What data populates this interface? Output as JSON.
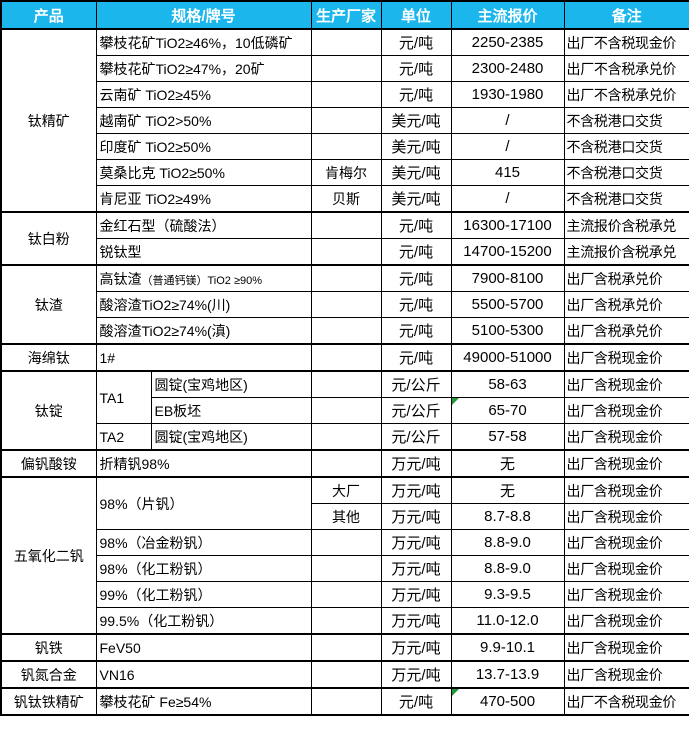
{
  "colors": {
    "header_bg": "#1bb6ec",
    "header_text": "#ffffff",
    "grid_border": "#000000",
    "error_indicator_green": "#1f9939"
  },
  "table": {
    "header": [
      "产品",
      "规格/牌号",
      "生产厂家",
      "单位",
      "主流报价",
      "备注"
    ],
    "rows": [
      {
        "section": true,
        "cells": [
          {
            "name": "product",
            "rowspan": 7,
            "text": "钛精矿"
          },
          {
            "name": "spec",
            "colspan": 2,
            "text": "攀枝花矿TiO2≥46%，10低磷矿"
          },
          {
            "name": "maker",
            "text": ""
          },
          {
            "name": "unit",
            "text": "元/吨"
          },
          {
            "name": "price",
            "text": "2250-2385"
          },
          {
            "name": "note",
            "text": "出厂不含税现金价"
          }
        ]
      },
      {
        "cells": [
          {
            "name": "spec",
            "colspan": 2,
            "text": "攀枝花矿TiO2≥47%，20矿"
          },
          {
            "name": "maker",
            "text": ""
          },
          {
            "name": "unit",
            "text": "元/吨"
          },
          {
            "name": "price",
            "text": "2300-2480"
          },
          {
            "name": "note",
            "text": "出厂不含税承兑价"
          }
        ]
      },
      {
        "cells": [
          {
            "name": "spec",
            "colspan": 2,
            "text": "云南矿 TiO2≥45%"
          },
          {
            "name": "maker",
            "text": ""
          },
          {
            "name": "unit",
            "text": "元/吨"
          },
          {
            "name": "price",
            "text": "1930-1980"
          },
          {
            "name": "note",
            "text": "出厂不含税承兑价"
          }
        ]
      },
      {
        "cells": [
          {
            "name": "spec",
            "colspan": 2,
            "text": "越南矿 TiO2>50%"
          },
          {
            "name": "maker",
            "text": ""
          },
          {
            "name": "unit",
            "text": "美元/吨"
          },
          {
            "name": "price",
            "text": "/"
          },
          {
            "name": "note",
            "text": "不含税港口交货"
          }
        ]
      },
      {
        "cells": [
          {
            "name": "spec",
            "colspan": 2,
            "text": "印度矿 TiO2≥50%"
          },
          {
            "name": "maker",
            "text": ""
          },
          {
            "name": "unit",
            "text": "美元/吨"
          },
          {
            "name": "price",
            "text": "/"
          },
          {
            "name": "note",
            "text": "不含税港口交货"
          }
        ]
      },
      {
        "cells": [
          {
            "name": "spec",
            "colspan": 2,
            "text": "莫桑比克 TiO2≥50%"
          },
          {
            "name": "maker",
            "text": "肯梅尔"
          },
          {
            "name": "unit",
            "text": "美元/吨"
          },
          {
            "name": "price",
            "text": "415"
          },
          {
            "name": "note",
            "text": "不含税港口交货"
          }
        ]
      },
      {
        "cells": [
          {
            "name": "spec",
            "colspan": 2,
            "text": "肯尼亚 TiO2≥49%"
          },
          {
            "name": "maker",
            "text": "贝斯"
          },
          {
            "name": "unit",
            "text": "美元/吨"
          },
          {
            "name": "price",
            "text": "/"
          },
          {
            "name": "note",
            "text": "不含税港口交货"
          }
        ]
      },
      {
        "section": true,
        "cells": [
          {
            "name": "product",
            "rowspan": 2,
            "text": "钛白粉"
          },
          {
            "name": "spec",
            "colspan": 2,
            "text": "金红石型（硫酸法）"
          },
          {
            "name": "maker",
            "text": ""
          },
          {
            "name": "unit",
            "text": "元/吨"
          },
          {
            "name": "price",
            "text": "16300-17100"
          },
          {
            "name": "note",
            "text": "主流报价含税承兑"
          }
        ]
      },
      {
        "cells": [
          {
            "name": "spec",
            "colspan": 2,
            "text": "锐钛型"
          },
          {
            "name": "maker",
            "text": ""
          },
          {
            "name": "unit",
            "text": "元/吨"
          },
          {
            "name": "price",
            "text": "14700-15200"
          },
          {
            "name": "note",
            "text": "主流报价含税承兑"
          }
        ]
      },
      {
        "section": true,
        "cells": [
          {
            "name": "product",
            "rowspan": 3,
            "text": "钛渣"
          },
          {
            "name": "spec",
            "colspan": 2,
            "text": "高钛渣",
            "small": "（普通钙镁）TiO2 ≥90%"
          },
          {
            "name": "maker",
            "text": ""
          },
          {
            "name": "unit",
            "text": "元/吨"
          },
          {
            "name": "price",
            "text": "7900-8100"
          },
          {
            "name": "note",
            "text": "出厂含税承兑价"
          }
        ]
      },
      {
        "cells": [
          {
            "name": "spec",
            "colspan": 2,
            "text": "酸溶渣TiO2≥74%(川)"
          },
          {
            "name": "maker",
            "text": ""
          },
          {
            "name": "unit",
            "text": "元/吨"
          },
          {
            "name": "price",
            "text": "5500-5700"
          },
          {
            "name": "note",
            "text": "出厂含税承兑价"
          }
        ]
      },
      {
        "cells": [
          {
            "name": "spec",
            "colspan": 2,
            "text": "酸溶渣TiO2≥74%(滇)"
          },
          {
            "name": "maker",
            "text": ""
          },
          {
            "name": "unit",
            "text": "元/吨"
          },
          {
            "name": "price",
            "text": "5100-5300"
          },
          {
            "name": "note",
            "text": "出厂含税承兑价"
          }
        ]
      },
      {
        "section": true,
        "cells": [
          {
            "name": "product",
            "text": "海绵钛"
          },
          {
            "name": "spec",
            "colspan": 2,
            "text": "1#"
          },
          {
            "name": "maker",
            "text": ""
          },
          {
            "name": "unit",
            "text": "元/吨"
          },
          {
            "name": "price",
            "text": "49000-51000"
          },
          {
            "name": "note",
            "text": "出厂含税现金价"
          }
        ]
      },
      {
        "section": true,
        "cells": [
          {
            "name": "product",
            "rowspan": 3,
            "text": "钛锭"
          },
          {
            "name": "spec-a",
            "rowspan": 2,
            "text": "TA1"
          },
          {
            "name": "spec-b",
            "text": "圆锭(宝鸡地区)"
          },
          {
            "name": "maker",
            "text": ""
          },
          {
            "name": "unit",
            "text": "元/公斤"
          },
          {
            "name": "price",
            "text": "58-63"
          },
          {
            "name": "note",
            "text": "出厂含税现金价"
          }
        ]
      },
      {
        "cells": [
          {
            "name": "spec-b",
            "text": "EB板坯"
          },
          {
            "name": "maker",
            "text": ""
          },
          {
            "name": "unit",
            "text": "元/公斤"
          },
          {
            "name": "price",
            "text": "65-70",
            "green": true
          },
          {
            "name": "note",
            "text": "出厂含税现金价"
          }
        ]
      },
      {
        "cells": [
          {
            "name": "spec-a",
            "text": "TA2"
          },
          {
            "name": "spec-b",
            "text": "圆锭(宝鸡地区)"
          },
          {
            "name": "maker",
            "text": ""
          },
          {
            "name": "unit",
            "text": "元/公斤"
          },
          {
            "name": "price",
            "text": "57-58"
          },
          {
            "name": "note",
            "text": "出厂含税现金价"
          }
        ]
      },
      {
        "section": true,
        "cells": [
          {
            "name": "product",
            "text": "偏钒酸铵"
          },
          {
            "name": "spec",
            "colspan": 2,
            "text": "折精钒98%"
          },
          {
            "name": "maker",
            "text": ""
          },
          {
            "name": "unit",
            "text": "万元/吨"
          },
          {
            "name": "price",
            "text": "无"
          },
          {
            "name": "note",
            "text": "出厂含税现金价"
          }
        ]
      },
      {
        "section": true,
        "cells": [
          {
            "name": "product",
            "rowspan": 6,
            "text": "五氧化二钒"
          },
          {
            "name": "spec",
            "rowspan": 2,
            "colspan": 2,
            "text": "98%（片钒）"
          },
          {
            "name": "maker",
            "text": "大厂"
          },
          {
            "name": "unit",
            "text": "万元/吨"
          },
          {
            "name": "price",
            "text": "无"
          },
          {
            "name": "note",
            "text": "出厂含税现金价"
          }
        ]
      },
      {
        "cells": [
          {
            "name": "maker",
            "text": "其他"
          },
          {
            "name": "unit",
            "text": "万元/吨"
          },
          {
            "name": "price",
            "text": "8.7-8.8"
          },
          {
            "name": "note",
            "text": "出厂含税现金价"
          }
        ]
      },
      {
        "cells": [
          {
            "name": "spec",
            "colspan": 2,
            "text": "98%（冶金粉钒）"
          },
          {
            "name": "maker",
            "text": ""
          },
          {
            "name": "unit",
            "text": "万元/吨"
          },
          {
            "name": "price",
            "text": "8.8-9.0"
          },
          {
            "name": "note",
            "text": "出厂含税现金价"
          }
        ]
      },
      {
        "cells": [
          {
            "name": "spec",
            "colspan": 2,
            "text": "98%（化工粉钒）"
          },
          {
            "name": "maker",
            "text": ""
          },
          {
            "name": "unit",
            "text": "万元/吨"
          },
          {
            "name": "price",
            "text": "8.8-9.0"
          },
          {
            "name": "note",
            "text": "出厂含税现金价"
          }
        ]
      },
      {
        "cells": [
          {
            "name": "spec",
            "colspan": 2,
            "text": "99%（化工粉钒）"
          },
          {
            "name": "maker",
            "text": ""
          },
          {
            "name": "unit",
            "text": "万元/吨"
          },
          {
            "name": "price",
            "text": "9.3-9.5"
          },
          {
            "name": "note",
            "text": "出厂含税现金价"
          }
        ]
      },
      {
        "cells": [
          {
            "name": "spec",
            "colspan": 2,
            "text": "99.5%（化工粉钒）"
          },
          {
            "name": "maker",
            "text": ""
          },
          {
            "name": "unit",
            "text": "万元/吨"
          },
          {
            "name": "price",
            "text": "11.0-12.0"
          },
          {
            "name": "note",
            "text": "出厂含税现金价"
          }
        ]
      },
      {
        "section": true,
        "cells": [
          {
            "name": "product",
            "text": "钒铁"
          },
          {
            "name": "spec",
            "colspan": 2,
            "text": "FeV50"
          },
          {
            "name": "maker",
            "text": ""
          },
          {
            "name": "unit",
            "text": "万元/吨"
          },
          {
            "name": "price",
            "text": "9.9-10.1"
          },
          {
            "name": "note",
            "text": "出厂含税现金价"
          }
        ]
      },
      {
        "section": true,
        "cells": [
          {
            "name": "product",
            "text": "钒氮合金"
          },
          {
            "name": "spec",
            "colspan": 2,
            "text": "VN16"
          },
          {
            "name": "maker",
            "text": ""
          },
          {
            "name": "unit",
            "text": "万元/吨"
          },
          {
            "name": "price",
            "text": "13.7-13.9"
          },
          {
            "name": "note",
            "text": "出厂含税现金价"
          }
        ]
      },
      {
        "section": true,
        "cells": [
          {
            "name": "product",
            "text": "钒钛铁精矿"
          },
          {
            "name": "spec",
            "colspan": 2,
            "text": "攀枝花矿 Fe≥54%"
          },
          {
            "name": "maker",
            "text": ""
          },
          {
            "name": "unit",
            "text": "元/吨"
          },
          {
            "name": "price",
            "text": "470-500",
            "green": true
          },
          {
            "name": "note",
            "text": "出厂不含税现金价"
          }
        ]
      }
    ]
  }
}
